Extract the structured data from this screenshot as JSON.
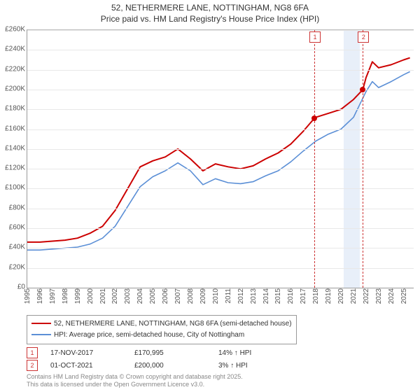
{
  "title_line1": "52, NETHERMERE LANE, NOTTINGHAM, NG8 6FA",
  "title_line2": "Price paid vs. HM Land Registry's House Price Index (HPI)",
  "chart": {
    "type": "line",
    "background_color": "#ffffff",
    "grid_color": "#e8e8e8",
    "axis_color": "#999999",
    "x": {
      "min": 1995,
      "max": 2025.8,
      "ticks": [
        1995,
        1996,
        1997,
        1998,
        1999,
        2000,
        2001,
        2002,
        2003,
        2004,
        2005,
        2006,
        2007,
        2008,
        2009,
        2010,
        2011,
        2012,
        2013,
        2014,
        2015,
        2016,
        2017,
        2018,
        2019,
        2020,
        2021,
        2022,
        2023,
        2024,
        2025
      ]
    },
    "y": {
      "min": 0,
      "max": 260000,
      "tick_step": 20000,
      "prefix": "£",
      "suffix": "K",
      "divisor": 1000
    },
    "highlight_band": {
      "from": 2020.2,
      "to": 2021.5,
      "color": "#e8eff9"
    },
    "series": [
      {
        "key": "property",
        "label": "52, NETHERMERE LANE, NOTTINGHAM, NG8 6FA (semi-detached house)",
        "color": "#cc0000",
        "width": 2,
        "data": [
          [
            1995,
            46000
          ],
          [
            1996,
            46000
          ],
          [
            1997,
            47000
          ],
          [
            1998,
            48000
          ],
          [
            1999,
            50000
          ],
          [
            2000,
            55000
          ],
          [
            2001,
            62000
          ],
          [
            2002,
            78000
          ],
          [
            2003,
            100000
          ],
          [
            2004,
            122000
          ],
          [
            2005,
            128000
          ],
          [
            2006,
            132000
          ],
          [
            2007,
            140000
          ],
          [
            2008,
            130000
          ],
          [
            2009,
            118000
          ],
          [
            2010,
            125000
          ],
          [
            2011,
            122000
          ],
          [
            2012,
            120000
          ],
          [
            2013,
            123000
          ],
          [
            2014,
            130000
          ],
          [
            2015,
            136000
          ],
          [
            2016,
            145000
          ],
          [
            2017,
            158000
          ],
          [
            2017.88,
            170995
          ],
          [
            2018,
            172000
          ],
          [
            2019,
            176000
          ],
          [
            2020,
            180000
          ],
          [
            2021,
            190000
          ],
          [
            2021.75,
            200000
          ],
          [
            2022,
            212000
          ],
          [
            2022.5,
            228000
          ],
          [
            2023,
            222000
          ],
          [
            2024,
            225000
          ],
          [
            2025,
            230000
          ],
          [
            2025.5,
            232000
          ]
        ]
      },
      {
        "key": "hpi",
        "label": "HPI: Average price, semi-detached house, City of Nottingham",
        "color": "#5b8fd6",
        "width": 1.6,
        "data": [
          [
            1995,
            38000
          ],
          [
            1996,
            38000
          ],
          [
            1997,
            39000
          ],
          [
            1998,
            40000
          ],
          [
            1999,
            41000
          ],
          [
            2000,
            44000
          ],
          [
            2001,
            50000
          ],
          [
            2002,
            62000
          ],
          [
            2003,
            82000
          ],
          [
            2004,
            102000
          ],
          [
            2005,
            112000
          ],
          [
            2006,
            118000
          ],
          [
            2007,
            126000
          ],
          [
            2008,
            118000
          ],
          [
            2009,
            104000
          ],
          [
            2010,
            110000
          ],
          [
            2011,
            106000
          ],
          [
            2012,
            105000
          ],
          [
            2013,
            107000
          ],
          [
            2014,
            113000
          ],
          [
            2015,
            118000
          ],
          [
            2016,
            127000
          ],
          [
            2017,
            138000
          ],
          [
            2018,
            148000
          ],
          [
            2019,
            155000
          ],
          [
            2020,
            160000
          ],
          [
            2021,
            172000
          ],
          [
            2022,
            198000
          ],
          [
            2022.5,
            208000
          ],
          [
            2023,
            202000
          ],
          [
            2024,
            208000
          ],
          [
            2025,
            215000
          ],
          [
            2025.5,
            218000
          ]
        ]
      }
    ],
    "markers": [
      {
        "id": "1",
        "x": 2017.88,
        "y": 170995,
        "color": "#cc0000"
      },
      {
        "id": "2",
        "x": 2021.75,
        "y": 200000,
        "color": "#cc0000"
      }
    ]
  },
  "annotations": [
    {
      "id": "1",
      "date": "17-NOV-2017",
      "price": "£170,995",
      "delta": "14% ↑ HPI"
    },
    {
      "id": "2",
      "date": "01-OCT-2021",
      "price": "£200,000",
      "delta": "3% ↑ HPI"
    }
  ],
  "footer_line1": "Contains HM Land Registry data © Crown copyright and database right 2025.",
  "footer_line2": "This data is licensed under the Open Government Licence v3.0."
}
